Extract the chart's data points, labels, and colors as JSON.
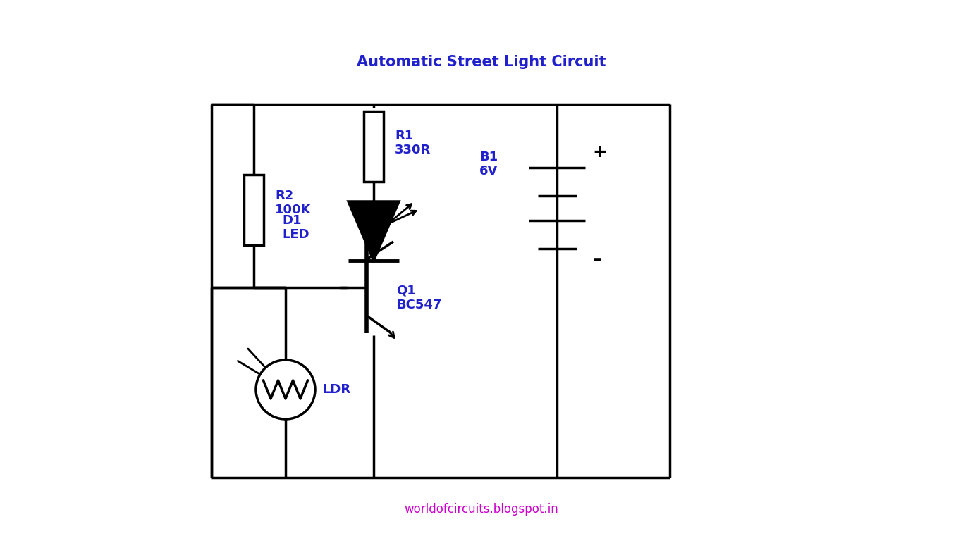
{
  "title": "Automatic Street Light Circuit",
  "title_color": "#2020CC",
  "title_fontsize": 15,
  "footer": "worldofcircuits.blogspot.in",
  "footer_color": "#CC00CC",
  "footer_fontsize": 12,
  "bg_color": "#ffffff",
  "line_color": "#000000",
  "label_color": "#2020CC",
  "label_fontsize": 13,
  "r2_label": "R2\n100K",
  "r1_label": "R1\n330R",
  "d1_label": "D1\nLED",
  "q1_label": "Q1\nBC547",
  "ldr_label": "LDR",
  "b1_label": "B1\n6V"
}
